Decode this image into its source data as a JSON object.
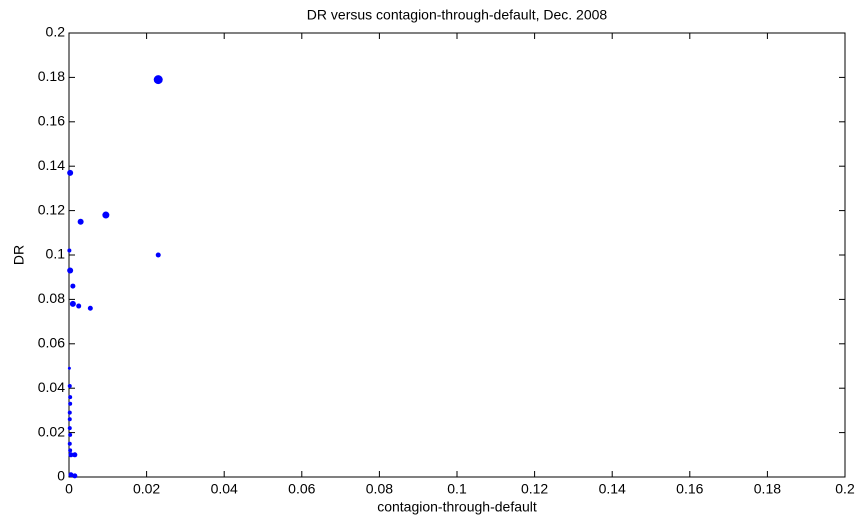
{
  "chart_data": {
    "type": "scatter",
    "title": "DR versus contagion-through-default, Dec. 2008",
    "x_label": "contagion-through-default",
    "y_label": "DR",
    "color": "#0000ff",
    "x": [
      0.023,
      0.023,
      0.0095,
      0.003,
      0.0055,
      0.0025,
      0.001,
      0.0003,
      0.0001,
      0.0003,
      0.001,
      0.0001,
      0.0002,
      0.0003,
      0.0003,
      0.0002,
      0.0002,
      0.0002,
      0.0003,
      0.0002,
      0.0003,
      0.0005,
      0.0015,
      0.0005,
      0.0015
    ],
    "values": [
      0.179,
      0.1,
      0.118,
      0.115,
      0.076,
      0.077,
      0.078,
      0.137,
      0.102,
      0.093,
      0.086,
      0.049,
      0.041,
      0.036,
      0.033,
      0.029,
      0.026,
      0.022,
      0.019,
      0.015,
      0.012,
      0.01,
      0.01,
      0.001,
      0.0005
    ],
    "sizes": [
      4.5,
      2.5,
      3.5,
      3,
      2.5,
      2.5,
      3,
      3,
      2,
      3,
      2.5,
      1.5,
      2,
      2,
      2,
      2,
      2,
      2,
      2,
      2,
      2,
      2.5,
      2.5,
      2.5,
      2.5
    ],
    "xlim": [
      0,
      0.2
    ],
    "ylim": [
      0,
      0.2
    ],
    "xticks": [
      0,
      0.02,
      0.04,
      0.06,
      0.08,
      0.1,
      0.12,
      0.14,
      0.16,
      0.18,
      0.2
    ],
    "yticks": [
      0,
      0.02,
      0.04,
      0.06,
      0.08,
      0.1,
      0.12,
      0.14,
      0.16,
      0.18,
      0.2
    ],
    "grid": false
  }
}
